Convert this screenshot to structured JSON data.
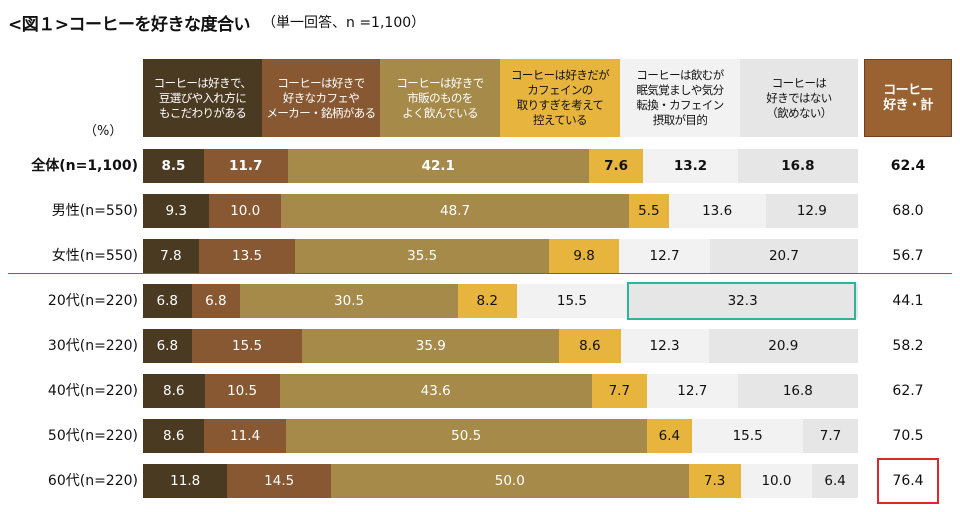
{
  "chart_data": {
    "type": "bar",
    "orientation": "horizontal-stacked-100",
    "title": "<図１>コーヒーを好きな度合い",
    "subtitle": "（単一回答、n =1,100）",
    "unit": "（%）",
    "series": [
      {
        "name": "コーヒーは好きで、\n豆選びや入れ方に\nもこだわりがある",
        "color": "#4a3a22",
        "text_color": "#ffffff",
        "values": [
          8.5,
          9.3,
          7.8,
          6.8,
          6.8,
          8.6,
          8.6,
          11.8
        ]
      },
      {
        "name": "コーヒーは好きで\n好きなカフェや\nメーカー・銘柄がある",
        "color": "#875831",
        "text_color": "#ffffff",
        "values": [
          11.7,
          10.0,
          13.5,
          6.8,
          15.5,
          10.5,
          11.4,
          14.5
        ]
      },
      {
        "name": "コーヒーは好きで\n市販のものを\nよく飲んでいる",
        "color": "#a58a4a",
        "text_color": "#ffffff",
        "values": [
          42.1,
          48.7,
          35.5,
          30.5,
          35.9,
          43.6,
          50.5,
          50.0
        ]
      },
      {
        "name": "コーヒーは好きだが\nカフェインの\n取りすぎを考えて\n控えている",
        "color": "#e7b53d",
        "text_color": "#111111",
        "values": [
          7.6,
          5.5,
          9.8,
          8.2,
          8.6,
          7.7,
          6.4,
          7.3
        ]
      },
      {
        "name": "コーヒーは飲むが\n眠気覚ましや気分\n転換・カフェイン\n摂取が目的",
        "color": "#f2f2f2",
        "text_color": "#111111",
        "values": [
          13.2,
          13.6,
          12.7,
          15.5,
          12.3,
          12.7,
          15.5,
          10.0
        ]
      },
      {
        "name": "コーヒーは\n好きではない\n（飲めない）",
        "color": "#e6e6e6",
        "text_color": "#111111",
        "values": [
          16.8,
          12.9,
          20.7,
          32.3,
          20.9,
          16.8,
          7.7,
          6.4
        ]
      }
    ],
    "categories": [
      "全体(n=1,100)",
      "男性(n=550)",
      "女性(n=550)",
      "20代(n=220)",
      "30代(n=220)",
      "40代(n=220)",
      "50代(n=220)",
      "60代(n=220)"
    ],
    "total": {
      "name": "コーヒー\n好き・計",
      "color": "#9a6231",
      "values": [
        62.4,
        68.0,
        56.7,
        44.1,
        58.2,
        62.7,
        70.5,
        76.4
      ]
    },
    "highlights": [
      {
        "category": "20代(n=220)",
        "series": "コーヒーは\n好きではない\n（飲めない）",
        "color": "#2bb59a"
      },
      {
        "category": "60代(n=220)",
        "series": "コーヒー\n好き・計",
        "color": "#e0262b"
      }
    ],
    "divider_color": "#2f6fbf"
  }
}
